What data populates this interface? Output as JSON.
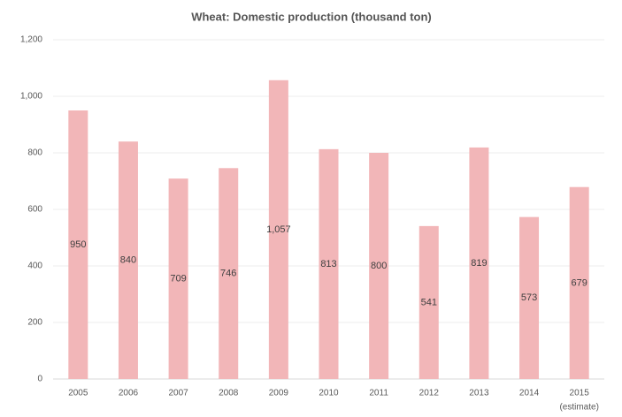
{
  "chart_data": {
    "type": "bar",
    "title": "Wheat: Domestic production (thousand ton)",
    "categories": [
      "2005",
      "2006",
      "2007",
      "2008",
      "2009",
      "2010",
      "2011",
      "2012",
      "2013",
      "2014",
      "2015"
    ],
    "values": [
      950,
      840,
      709,
      746,
      1057,
      813,
      800,
      541,
      819,
      573,
      679
    ],
    "value_labels": [
      "950",
      "840",
      "709",
      "746",
      "1,057",
      "813",
      "800",
      "541",
      "819",
      "573",
      "679"
    ],
    "annotation": "(estimate)",
    "color": "#f2b6b8",
    "ylim": [
      0,
      1200
    ],
    "yticks": [
      0,
      200,
      400,
      600,
      800,
      {
        "value": 1000,
        "label": "1,000"
      },
      {
        "value": 1200,
        "label": "1,200"
      }
    ],
    "grid": true
  }
}
